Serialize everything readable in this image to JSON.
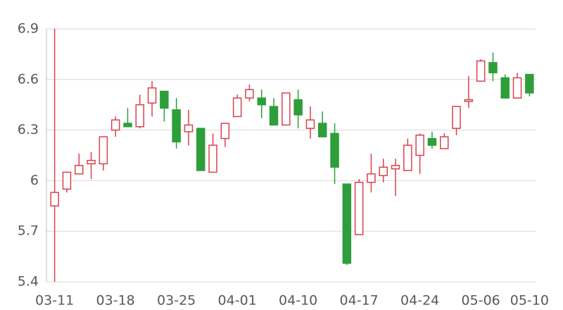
{
  "chart_data": {
    "type": "candlestick",
    "categories": [
      "03-11",
      null,
      null,
      null,
      null,
      "03-18",
      null,
      null,
      null,
      null,
      "03-25",
      null,
      null,
      null,
      null,
      "04-01",
      null,
      null,
      null,
      null,
      "04-10",
      null,
      null,
      null,
      null,
      "04-17",
      null,
      null,
      null,
      null,
      "04-24",
      null,
      null,
      null,
      null,
      "05-06",
      null,
      null,
      null,
      "05-10"
    ],
    "open": [
      5.85,
      5.95,
      6.04,
      6.1,
      6.1,
      6.3,
      6.34,
      6.32,
      6.46,
      6.53,
      6.42,
      6.29,
      6.31,
      6.05,
      6.25,
      6.38,
      6.49,
      6.49,
      6.44,
      6.33,
      6.48,
      6.31,
      6.34,
      6.28,
      5.98,
      5.68,
      5.99,
      6.03,
      6.07,
      6.06,
      6.15,
      6.25,
      6.19,
      6.31,
      6.47,
      6.59,
      6.7,
      6.61,
      6.49,
      6.63
    ],
    "high": [
      6.9,
      6.05,
      6.16,
      6.17,
      6.26,
      6.38,
      6.43,
      6.51,
      6.59,
      6.53,
      6.49,
      6.42,
      6.31,
      6.28,
      6.34,
      6.51,
      6.57,
      6.54,
      6.49,
      6.52,
      6.54,
      6.44,
      6.41,
      6.34,
      5.98,
      6.01,
      6.16,
      6.13,
      6.13,
      6.25,
      6.28,
      6.29,
      6.28,
      6.44,
      6.62,
      6.72,
      6.76,
      6.63,
      6.64,
      6.63
    ],
    "low": [
      5.4,
      5.93,
      6.04,
      6.01,
      6.06,
      6.26,
      6.32,
      6.31,
      6.38,
      6.35,
      6.19,
      6.21,
      6.06,
      6.05,
      6.2,
      6.38,
      6.47,
      6.37,
      6.33,
      6.33,
      6.31,
      6.25,
      6.26,
      5.98,
      5.5,
      5.68,
      5.93,
      5.99,
      5.91,
      6.06,
      6.04,
      6.19,
      6.19,
      6.27,
      6.43,
      6.59,
      6.59,
      6.49,
      6.49,
      6.5
    ],
    "close": [
      5.93,
      6.05,
      6.09,
      6.12,
      6.26,
      6.36,
      6.32,
      6.45,
      6.55,
      6.43,
      6.23,
      6.33,
      6.06,
      6.21,
      6.34,
      6.49,
      6.54,
      6.45,
      6.33,
      6.52,
      6.39,
      6.36,
      6.26,
      6.08,
      5.51,
      5.99,
      6.04,
      6.08,
      6.09,
      6.21,
      6.27,
      6.21,
      6.26,
      6.44,
      6.48,
      6.71,
      6.64,
      6.49,
      6.61,
      6.52
    ],
    "up_color": "#d9414b",
    "down_color": "#2e9e3a",
    "ylim": [
      5.4,
      6.9
    ],
    "yticks": [
      5.4,
      5.7,
      6,
      6.3,
      6.6,
      6.9
    ],
    "grid": true
  }
}
